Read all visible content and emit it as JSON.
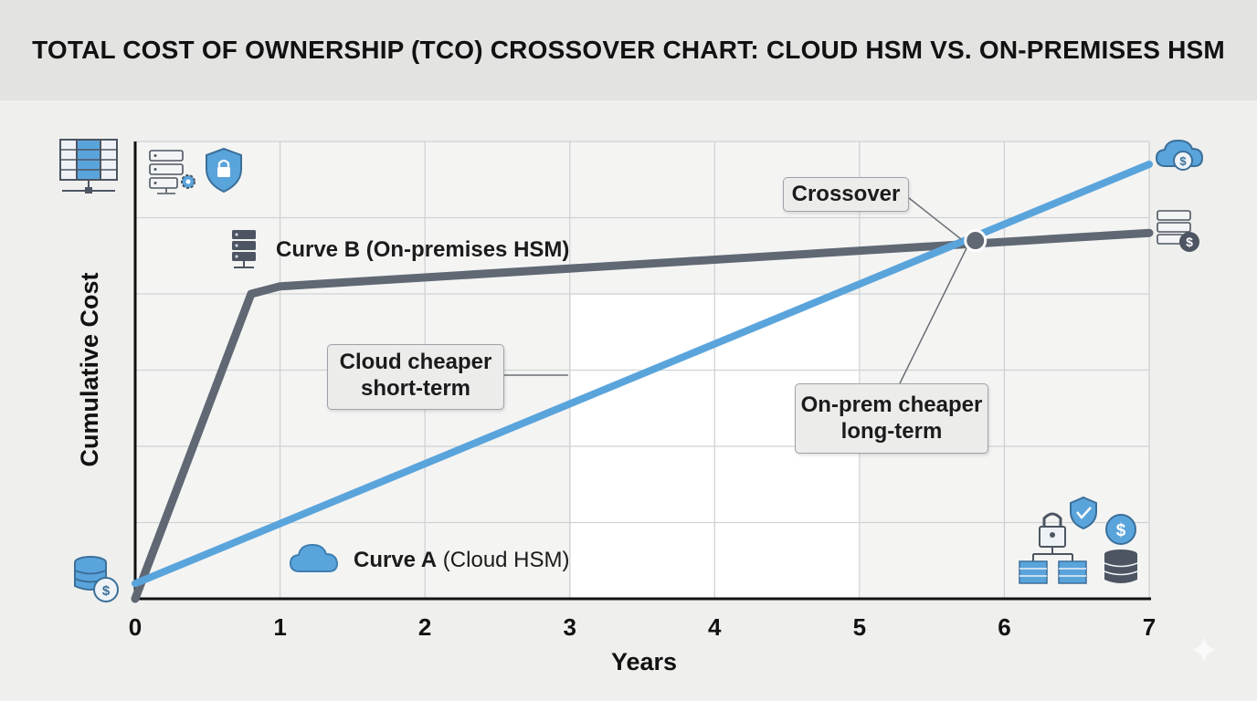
{
  "chart_data": {
    "type": "line",
    "title": "TOTAL COST OF OWNERSHIP (TCO) CROSSOVER CHART: CLOUD HSM VS. ON-PREMISES HSM",
    "xlabel": "Years",
    "ylabel": "Cumulative Cost",
    "xlim": [
      0,
      7
    ],
    "ylim": [
      0,
      6
    ],
    "x_ticks": [
      "0",
      "1",
      "2",
      "3",
      "4",
      "5",
      "6",
      "7"
    ],
    "grid": true,
    "series": [
      {
        "name": "Curve A (Cloud HSM)",
        "color": "#5aa4dc",
        "points": [
          [
            0,
            0.2
          ],
          [
            7,
            5.7
          ]
        ]
      },
      {
        "name": "Curve B (On-premises HSM)",
        "color": "#5f6873",
        "points": [
          [
            0,
            0
          ],
          [
            0.8,
            4.0
          ],
          [
            1.0,
            4.1
          ],
          [
            7,
            4.8
          ]
        ]
      }
    ],
    "crossover": {
      "x": 5.8,
      "y": 4.7,
      "label": "Crossover"
    },
    "annotations": [
      {
        "line1": "Cloud cheaper",
        "line2": "short-term"
      },
      {
        "line1": "On-prem cheaper",
        "line2": "long-term"
      }
    ],
    "series_label_a": {
      "bold": "Curve A",
      "rest": " (Cloud HSM)"
    },
    "series_label_b": "Curve B (On-premises HSM)"
  },
  "icons": {
    "top_left_server": "server-rack-icon",
    "server_gear": "server-gear-icon",
    "shield_lock": "shield-lock-icon",
    "top_right_cloud": "cloud-dollar-icon",
    "right_server_dollar": "server-dollar-icon",
    "bottom_left_db": "database-dollar-icon",
    "bottom_right_group": "security-cost-group-icon",
    "sparkle": "sparkle-icon"
  }
}
